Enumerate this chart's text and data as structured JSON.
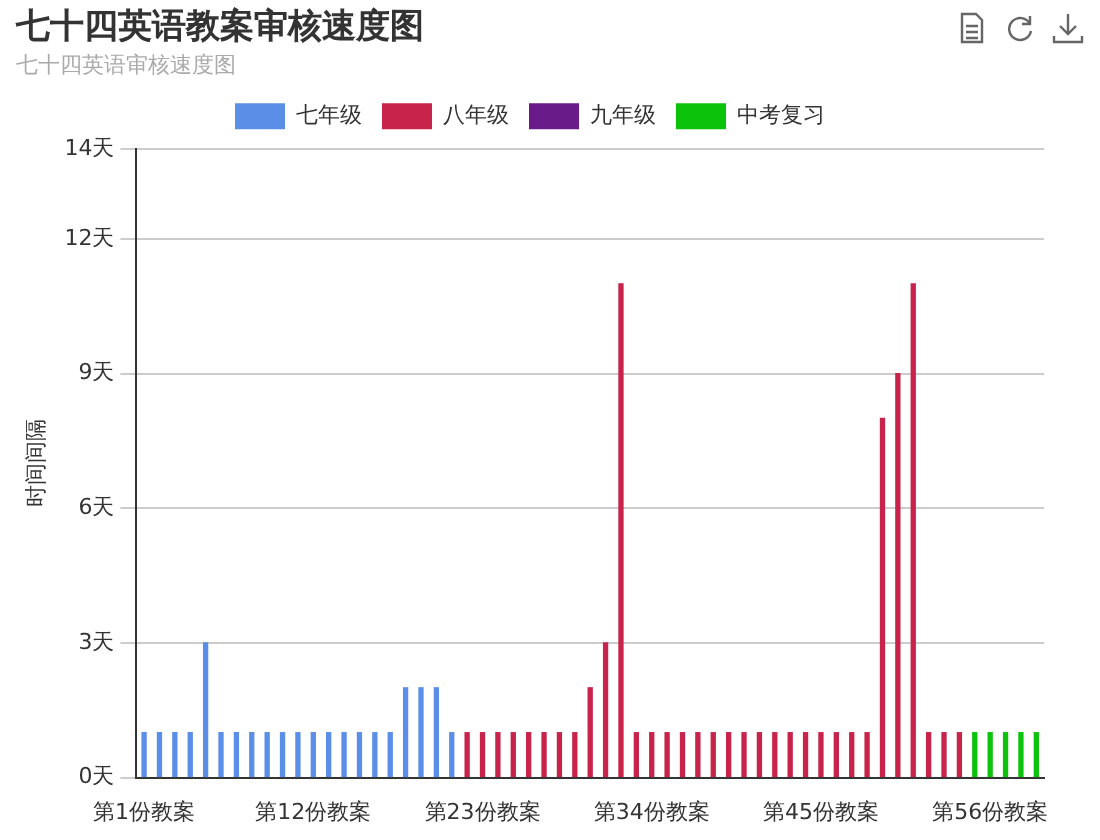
{
  "chart_data": {
    "type": "bar",
    "title": "七十四英语教案审核速度图",
    "subtitle": "七十四英语审核速度图",
    "ylabel": "时间间隔",
    "categories": [
      "第1份教案",
      null,
      null,
      null,
      null,
      null,
      null,
      null,
      null,
      null,
      null,
      "第12份教案",
      null,
      null,
      null,
      null,
      null,
      null,
      null,
      null,
      null,
      null,
      "第23份教案",
      null,
      null,
      null,
      null,
      null,
      null,
      null,
      null,
      null,
      null,
      "第34份教案",
      null,
      null,
      null,
      null,
      null,
      null,
      null,
      null,
      null,
      null,
      "第45份教案",
      null,
      null,
      null,
      null,
      null,
      null,
      null,
      null,
      null,
      null,
      "第56份教案",
      null,
      null,
      null
    ],
    "series": [
      {
        "name": "七年级",
        "color": "#5b8ee6",
        "values": [
          1,
          1,
          1,
          1,
          3,
          1,
          1,
          1,
          1,
          1,
          1,
          1,
          1,
          1,
          1,
          1,
          1,
          2,
          2,
          2,
          1,
          null,
          null,
          null,
          null,
          null,
          null,
          null,
          null,
          null,
          null,
          null,
          null,
          null,
          null,
          null,
          null,
          null,
          null,
          null,
          null,
          null,
          null,
          null,
          null,
          null,
          null,
          null,
          null,
          null,
          null,
          null,
          null,
          null,
          null,
          null,
          null,
          null,
          null
        ]
      },
      {
        "name": "八年级",
        "color": "#c8234a",
        "values": [
          null,
          null,
          null,
          null,
          null,
          null,
          null,
          null,
          null,
          null,
          null,
          null,
          null,
          null,
          null,
          null,
          null,
          null,
          null,
          null,
          null,
          1,
          1,
          1,
          1,
          1,
          1,
          1,
          1,
          2,
          3,
          11,
          1,
          1,
          1,
          1,
          1,
          1,
          1,
          1,
          1,
          1,
          1,
          1,
          1,
          1,
          1,
          1,
          8,
          9,
          11,
          1,
          1,
          1,
          null,
          null,
          null,
          null,
          null
        ]
      },
      {
        "name": "九年级",
        "color": "#6a1b8a",
        "values": [
          null,
          null,
          null,
          null,
          null,
          null,
          null,
          null,
          null,
          null,
          null,
          null,
          null,
          null,
          null,
          null,
          null,
          null,
          null,
          null,
          null,
          null,
          null,
          null,
          null,
          null,
          null,
          null,
          null,
          null,
          null,
          null,
          null,
          null,
          null,
          null,
          null,
          null,
          null,
          null,
          null,
          null,
          null,
          null,
          null,
          null,
          null,
          null,
          null,
          null,
          null,
          null,
          null,
          null,
          null,
          null,
          null,
          null,
          null
        ]
      },
      {
        "name": "中考复习",
        "color": "#0cc30c",
        "values": [
          null,
          null,
          null,
          null,
          null,
          null,
          null,
          null,
          null,
          null,
          null,
          null,
          null,
          null,
          null,
          null,
          null,
          null,
          null,
          null,
          null,
          null,
          null,
          null,
          null,
          null,
          null,
          null,
          null,
          null,
          null,
          null,
          null,
          null,
          null,
          null,
          null,
          null,
          null,
          null,
          null,
          null,
          null,
          null,
          null,
          null,
          null,
          null,
          null,
          null,
          null,
          null,
          null,
          null,
          1,
          1,
          1,
          1,
          1
        ]
      }
    ],
    "stacked": true,
    "ylim": [
      0,
      14
    ],
    "yticks": [
      {
        "value": 0,
        "label": "0天"
      },
      {
        "value": 3,
        "label": "3天"
      },
      {
        "value": 6,
        "label": "6天"
      },
      {
        "value": 9,
        "label": "9天"
      },
      {
        "value": 12,
        "label": "12天"
      },
      {
        "value": 14,
        "label": "14天"
      }
    ],
    "grid": "y",
    "legend": "top"
  }
}
